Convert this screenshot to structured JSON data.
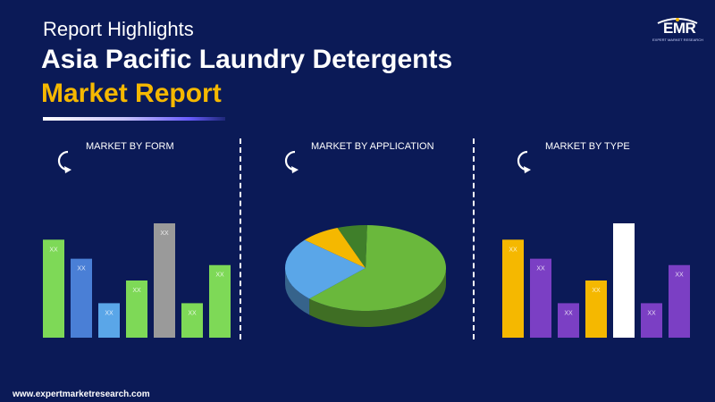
{
  "header": {
    "eyebrow": "Report Highlights",
    "title_line1": "Asia Pacific Laundry Detergents",
    "title_line2": "Market Report"
  },
  "logo": {
    "text": "EMR",
    "tagline": "EXPERT MARKET RESEARCH"
  },
  "sections": [
    {
      "label": "MARKET BY FORM",
      "icon": "refresh-icon"
    },
    {
      "label": "MARKET BY APPLICATION",
      "icon": "refresh-icon"
    },
    {
      "label": "MARKET BY TYPE",
      "icon": "refresh-icon"
    }
  ],
  "footer": {
    "url": "www.expertmarketresearch.com"
  },
  "colors": {
    "background": "#0b1a57",
    "accent_yellow": "#f5b800",
    "green": "#7ed957",
    "blue": "#4a7fd6",
    "light_blue": "#5aa6e8",
    "gray": "#9a9a9a",
    "purple": "#7b3fc4",
    "white": "#ffffff"
  },
  "chart_data": [
    {
      "type": "bar",
      "title": "MARKET BY FORM",
      "categories": [
        "",
        "",
        "",
        "",
        "",
        "",
        ""
      ],
      "values": [
        108,
        87,
        38,
        63,
        126,
        38,
        80
      ],
      "labels": [
        "XX",
        "XX",
        "XX",
        "XX",
        "XX",
        "XX",
        "XX"
      ],
      "colors": [
        "#7ed957",
        "#4a7fd6",
        "#5aa6e8",
        "#7ed957",
        "#9a9a9a",
        "#7ed957",
        "#7ed957"
      ]
    },
    {
      "type": "pie",
      "title": "MARKET BY APPLICATION",
      "values": [
        62,
        24,
        8,
        6
      ],
      "colors": [
        "#6ab83c",
        "#5aa6e8",
        "#f5b800",
        "#3f7f2a"
      ]
    },
    {
      "type": "bar",
      "title": "MARKET BY TYPE",
      "categories": [
        "",
        "",
        "",
        "",
        "",
        "",
        ""
      ],
      "values": [
        108,
        87,
        38,
        63,
        126,
        38,
        80
      ],
      "labels": [
        "XX",
        "XX",
        "XX",
        "XX",
        "XX",
        "XX",
        "XX"
      ],
      "colors": [
        "#f5b800",
        "#7b3fc4",
        "#7b3fc4",
        "#f5b800",
        "#ffffff",
        "#7b3fc4",
        "#7b3fc4"
      ]
    }
  ]
}
